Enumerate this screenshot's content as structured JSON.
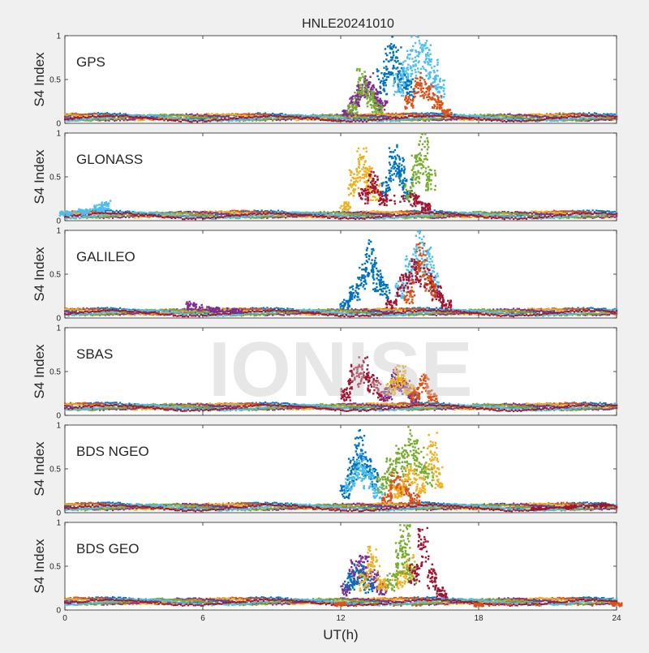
{
  "figure": {
    "title": "HNLE20241010",
    "watermark": "IONISE",
    "xlabel": "UT(h)",
    "background_color": "#f0f0f0",
    "axes_color": "#ffffff",
    "palette": [
      "#0072bd",
      "#d95319",
      "#edb120",
      "#7e2f8e",
      "#77ac30",
      "#4dbeee",
      "#a2142f"
    ]
  },
  "chart_data": [
    {
      "type": "scatter",
      "panel_label": "GPS",
      "ylabel": "S4 Index",
      "xlim": [
        0,
        24
      ],
      "ylim": [
        0,
        1
      ],
      "xticks": [
        0,
        6,
        12,
        18,
        24
      ],
      "yticks": [
        0,
        0.5,
        1
      ],
      "xtick_labels_visible": false,
      "baseline_s4": 0.07,
      "series": [
        {
          "color": "#7e2f8e",
          "points": [
            [
              12.3,
              0.15
            ],
            [
              12.6,
              0.3
            ],
            [
              12.9,
              0.45
            ],
            [
              13.2,
              0.55
            ],
            [
              13.5,
              0.4
            ],
            [
              13.8,
              0.25
            ]
          ]
        },
        {
          "color": "#0072bd",
          "points": [
            [
              13.8,
              0.6
            ],
            [
              14.1,
              0.95
            ],
            [
              14.4,
              0.85
            ],
            [
              14.7,
              0.6
            ],
            [
              15.0,
              0.5
            ]
          ]
        },
        {
          "color": "#4dbeee",
          "points": [
            [
              14.5,
              0.55
            ],
            [
              14.9,
              0.8
            ],
            [
              15.3,
              0.95
            ],
            [
              15.7,
              0.9
            ],
            [
              16.0,
              0.7
            ],
            [
              16.3,
              0.5
            ]
          ]
        },
        {
          "color": "#d95319",
          "points": [
            [
              15.0,
              0.3
            ],
            [
              15.4,
              0.55
            ],
            [
              15.8,
              0.45
            ],
            [
              16.2,
              0.3
            ],
            [
              16.6,
              0.15
            ]
          ]
        },
        {
          "color": "#77ac30",
          "points": [
            [
              12.5,
              0.2
            ],
            [
              12.9,
              0.6
            ],
            [
              13.3,
              0.35
            ],
            [
              13.6,
              0.2
            ]
          ]
        }
      ]
    },
    {
      "type": "scatter",
      "panel_label": "GLONASS",
      "ylabel": "S4 Index",
      "xlim": [
        0,
        24
      ],
      "ylim": [
        0,
        1
      ],
      "xticks": [
        0,
        6,
        12,
        18,
        24
      ],
      "yticks": [
        0,
        0.5,
        1
      ],
      "xtick_labels_visible": false,
      "baseline_s4": 0.07,
      "series": [
        {
          "color": "#edb120",
          "points": [
            [
              12.2,
              0.2
            ],
            [
              12.6,
              0.55
            ],
            [
              12.9,
              0.8
            ],
            [
              13.2,
              0.6
            ],
            [
              13.5,
              0.4
            ]
          ]
        },
        {
          "color": "#0072bd",
          "points": [
            [
              14.0,
              0.5
            ],
            [
              14.3,
              0.85
            ],
            [
              14.6,
              0.7
            ],
            [
              14.9,
              0.45
            ]
          ]
        },
        {
          "color": "#77ac30",
          "points": [
            [
              15.0,
              0.4
            ],
            [
              15.3,
              0.75
            ],
            [
              15.6,
              0.95
            ],
            [
              15.9,
              0.55
            ]
          ]
        },
        {
          "color": "#a2142f",
          "points": [
            [
              13.0,
              0.35
            ],
            [
              13.4,
              0.55
            ],
            [
              13.8,
              0.3
            ],
            [
              15.2,
              0.3
            ],
            [
              15.7,
              0.2
            ]
          ]
        },
        {
          "color": "#4dbeee",
          "points": [
            [
              0.0,
              0.1
            ],
            [
              0.8,
              0.13
            ],
            [
              1.5,
              0.18
            ],
            [
              1.8,
              0.22
            ]
          ]
        }
      ]
    },
    {
      "type": "scatter",
      "panel_label": "GALILEO",
      "ylabel": "S4 Index",
      "xlim": [
        0,
        24
      ],
      "ylim": [
        0,
        1
      ],
      "xticks": [
        0,
        6,
        12,
        18,
        24
      ],
      "yticks": [
        0,
        0.5,
        1
      ],
      "xtick_labels_visible": false,
      "baseline_s4": 0.07,
      "series": [
        {
          "color": "#0072bd",
          "points": [
            [
              12.2,
              0.2
            ],
            [
              12.6,
              0.35
            ],
            [
              13.0,
              0.6
            ],
            [
              13.3,
              0.85
            ],
            [
              13.6,
              0.55
            ],
            [
              13.9,
              0.4
            ]
          ]
        },
        {
          "color": "#4dbeee",
          "points": [
            [
              14.6,
              0.4
            ],
            [
              15.0,
              0.7
            ],
            [
              15.4,
              0.95
            ],
            [
              15.8,
              0.8
            ],
            [
              16.1,
              0.5
            ]
          ]
        },
        {
          "color": "#a2142f",
          "points": [
            [
              14.2,
              0.2
            ],
            [
              14.8,
              0.5
            ],
            [
              15.3,
              0.65
            ],
            [
              15.8,
              0.55
            ],
            [
              16.2,
              0.35
            ],
            [
              16.6,
              0.2
            ]
          ]
        },
        {
          "color": "#d95319",
          "points": [
            [
              15.0,
              0.3
            ],
            [
              15.5,
              0.85
            ],
            [
              15.9,
              0.45
            ]
          ]
        },
        {
          "color": "#7e2f8e",
          "points": [
            [
              5.5,
              0.18
            ],
            [
              6.5,
              0.12
            ],
            [
              7.5,
              0.1
            ]
          ]
        }
      ]
    },
    {
      "type": "scatter",
      "panel_label": "SBAS",
      "ylabel": "S4 Index",
      "xlim": [
        0,
        24
      ],
      "ylim": [
        0,
        1
      ],
      "xticks": [
        0,
        6,
        12,
        18,
        24
      ],
      "yticks": [
        0,
        0.5,
        1
      ],
      "xtick_labels_visible": false,
      "baseline_s4": 0.1,
      "series": [
        {
          "color": "#a2142f",
          "points": [
            [
              12.2,
              0.3
            ],
            [
              12.6,
              0.55
            ],
            [
              13.0,
              0.65
            ],
            [
              13.4,
              0.45
            ],
            [
              13.8,
              0.3
            ]
          ]
        },
        {
          "color": "#7e2f8e",
          "points": [
            [
              14.0,
              0.3
            ],
            [
              14.4,
              0.5
            ],
            [
              14.8,
              0.4
            ],
            [
              15.2,
              0.25
            ]
          ]
        },
        {
          "color": "#edb120",
          "points": [
            [
              14.2,
              0.4
            ],
            [
              14.6,
              0.55
            ],
            [
              15.0,
              0.35
            ]
          ]
        },
        {
          "color": "#d95319",
          "points": [
            [
              15.2,
              0.3
            ],
            [
              15.6,
              0.45
            ],
            [
              16.0,
              0.25
            ]
          ]
        }
      ]
    },
    {
      "type": "scatter",
      "panel_label": "BDS NGEO",
      "ylabel": "S4 Index",
      "xlim": [
        0,
        24
      ],
      "ylim": [
        0,
        1
      ],
      "xticks": [
        0,
        6,
        12,
        18,
        24
      ],
      "yticks": [
        0,
        0.5,
        1
      ],
      "xtick_labels_visible": false,
      "baseline_s4": 0.07,
      "series": [
        {
          "color": "#0072bd",
          "points": [
            [
              12.2,
              0.3
            ],
            [
              12.5,
              0.6
            ],
            [
              12.8,
              0.9
            ],
            [
              13.1,
              0.7
            ],
            [
              13.4,
              0.5
            ]
          ]
        },
        {
          "color": "#4dbeee",
          "points": [
            [
              12.4,
              0.4
            ],
            [
              12.8,
              0.65
            ],
            [
              13.2,
              0.5
            ],
            [
              13.6,
              0.3
            ]
          ]
        },
        {
          "color": "#77ac30",
          "points": [
            [
              13.8,
              0.4
            ],
            [
              14.2,
              0.6
            ],
            [
              14.6,
              0.75
            ],
            [
              15.0,
              0.95
            ],
            [
              15.4,
              0.8
            ],
            [
              15.8,
              0.5
            ]
          ]
        },
        {
          "color": "#d95319",
          "points": [
            [
              14.0,
              0.2
            ],
            [
              14.4,
              0.45
            ],
            [
              14.8,
              0.35
            ],
            [
              15.2,
              0.2
            ]
          ]
        },
        {
          "color": "#edb120",
          "points": [
            [
              14.5,
              0.3
            ],
            [
              15.0,
              0.55
            ],
            [
              15.5,
              0.4
            ],
            [
              16.0,
              0.9
            ],
            [
              16.2,
              0.5
            ]
          ]
        },
        {
          "color": "#a2142f",
          "points": [
            [
              20.5,
              0.06
            ],
            [
              22.0,
              0.08
            ],
            [
              23.5,
              0.1
            ]
          ]
        }
      ]
    },
    {
      "type": "scatter",
      "panel_label": "BDS GEO",
      "ylabel": "S4 Index",
      "xlim": [
        0,
        24
      ],
      "ylim": [
        0,
        1
      ],
      "xticks": [
        0,
        6,
        12,
        18,
        24
      ],
      "yticks": [
        0,
        0.5,
        1
      ],
      "xtick_labels_visible": true,
      "baseline_s4": 0.1,
      "series": [
        {
          "color": "#7e2f8e",
          "points": [
            [
              12.2,
              0.3
            ],
            [
              12.6,
              0.55
            ],
            [
              13.0,
              0.6
            ],
            [
              13.4,
              0.45
            ],
            [
              13.8,
              0.3
            ]
          ]
        },
        {
          "color": "#0072bd",
          "points": [
            [
              12.4,
              0.4
            ],
            [
              12.8,
              0.5
            ],
            [
              13.2,
              0.35
            ]
          ]
        },
        {
          "color": "#edb120",
          "points": [
            [
              13.0,
              0.4
            ],
            [
              13.4,
              0.7
            ],
            [
              13.8,
              0.35
            ],
            [
              14.6,
              0.45
            ],
            [
              15.0,
              0.6
            ]
          ]
        },
        {
          "color": "#77ac30",
          "points": [
            [
              14.2,
              0.4
            ],
            [
              14.6,
              0.75
            ],
            [
              14.8,
              0.95
            ],
            [
              15.1,
              0.5
            ]
          ]
        },
        {
          "color": "#a2142f",
          "points": [
            [
              15.2,
              0.5
            ],
            [
              15.6,
              0.9
            ],
            [
              16.0,
              0.45
            ],
            [
              16.4,
              0.25
            ]
          ]
        },
        {
          "color": "#d95319",
          "points": [
            [
              12.0,
              0.08
            ],
            [
              18.0,
              0.07
            ],
            [
              24.0,
              0.08
            ]
          ]
        }
      ]
    }
  ]
}
